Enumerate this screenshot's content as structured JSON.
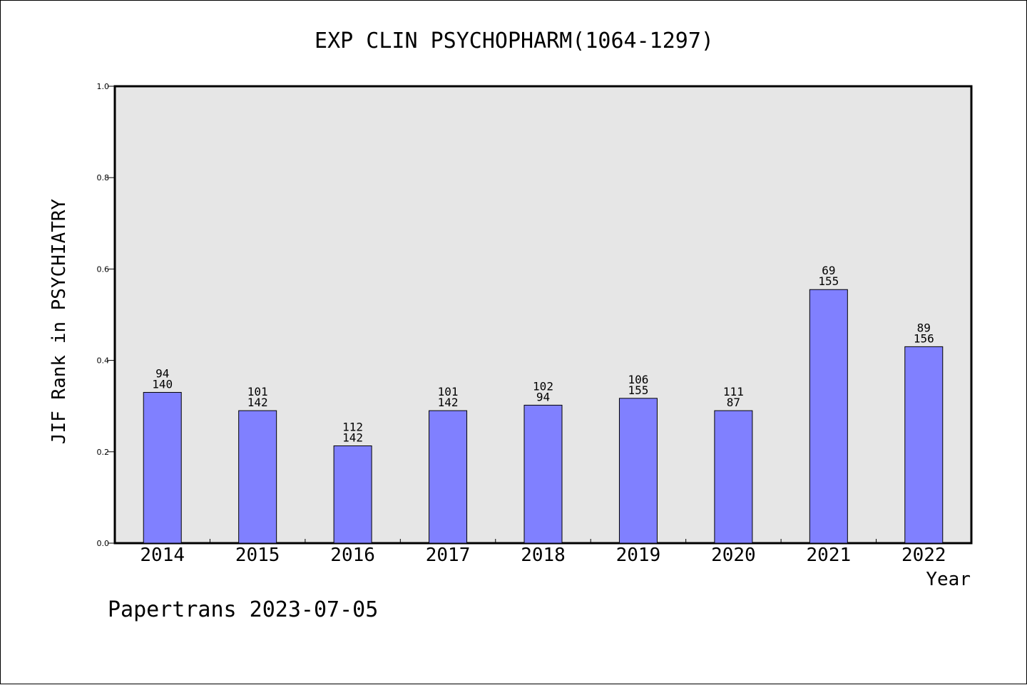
{
  "chart_data": {
    "type": "bar",
    "title": "EXP CLIN PSYCHOPHARM(1064-1297)",
    "xlabel": "Year",
    "ylabel": "JIF Rank in PSYCHIATRY",
    "ylim": [
      0,
      1.0
    ],
    "yticks": [
      "0.0",
      "0.2",
      "0.4",
      "0.6",
      "0.8",
      "1.0"
    ],
    "grid": false,
    "categories": [
      "2014",
      "2015",
      "2016",
      "2017",
      "2018",
      "2019",
      "2020",
      "2021",
      "2022"
    ],
    "values": [
      0.33,
      0.29,
      0.213,
      0.29,
      0.302,
      0.317,
      0.29,
      0.555,
      0.43
    ],
    "labels_top": [
      "94",
      "101",
      "112",
      "101",
      "102",
      "106",
      "111",
      "69",
      "89"
    ],
    "labels_bottom": [
      "140",
      "142",
      "142",
      "142",
      "94",
      "155",
      "87",
      "155",
      "156"
    ],
    "colors": {
      "bar": "#8080ff",
      "plot_bg": "#e6e6e6",
      "axis": "#000000"
    }
  },
  "footer": "Papertrans 2023-07-05"
}
